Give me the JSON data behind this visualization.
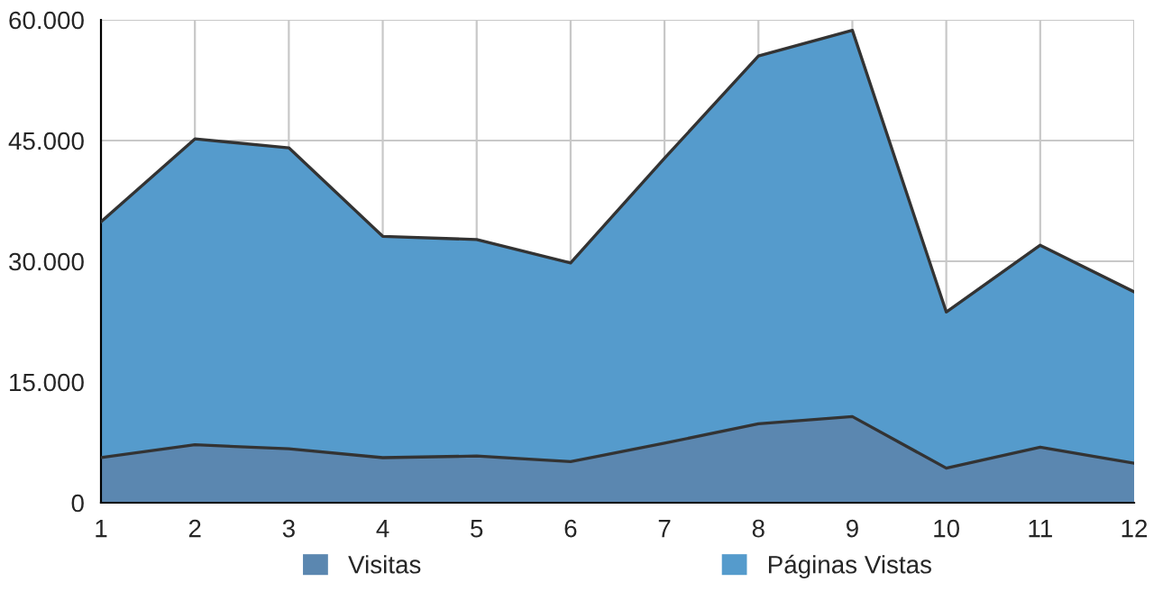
{
  "chart_data": {
    "type": "area",
    "x": [
      1,
      2,
      3,
      4,
      5,
      6,
      7,
      8,
      9,
      10,
      11,
      12
    ],
    "series": [
      {
        "name": "Visitas",
        "color": "#5b87b0",
        "values": [
          5600,
          7200,
          6700,
          5600,
          5800,
          5100,
          7400,
          9800,
          10700,
          4300,
          6900,
          4900
        ]
      },
      {
        "name": "Páginas Vistas",
        "color": "#559bcc",
        "values": [
          34900,
          45200,
          44100,
          33100,
          32700,
          29800,
          42800,
          55500,
          58700,
          23700,
          32000,
          26200
        ]
      }
    ],
    "xlim": [
      1,
      12
    ],
    "xticks": [
      1,
      2,
      3,
      4,
      5,
      6,
      7,
      8,
      9,
      10,
      11,
      12
    ],
    "ylim": [
      0,
      60000
    ],
    "yticks": [
      {
        "value": 0,
        "label": "0"
      },
      {
        "value": 15000,
        "label": "15.000"
      },
      {
        "value": 30000,
        "label": "30.000"
      },
      {
        "value": 45000,
        "label": "45.000"
      },
      {
        "value": 60000,
        "label": "60.000"
      }
    ],
    "grid": true,
    "legend": "bottom"
  }
}
